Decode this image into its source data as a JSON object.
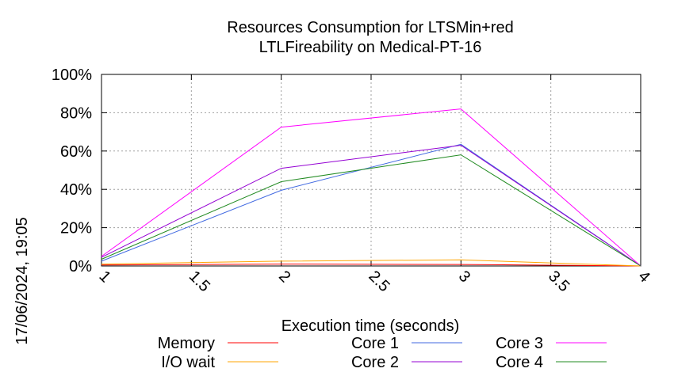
{
  "chart_data": {
    "type": "line",
    "title_line1": "Resources Consumption for LTSMin+red",
    "title_line2": "LTLFireability on Medical-PT-16",
    "xlabel": "Execution time (seconds)",
    "side_label": "17/06/2024, 19:05",
    "xlim": [
      1,
      4
    ],
    "ylim": [
      0,
      100
    ],
    "x_ticks": [
      {
        "value": 1,
        "label": "1"
      },
      {
        "value": 1.5,
        "label": "1.5"
      },
      {
        "value": 2,
        "label": "2"
      },
      {
        "value": 2.5,
        "label": "2.5"
      },
      {
        "value": 3,
        "label": "3"
      },
      {
        "value": 3.5,
        "label": "3.5"
      },
      {
        "value": 4,
        "label": "4"
      }
    ],
    "y_ticks": [
      {
        "value": 0,
        "label": "0%"
      },
      {
        "value": 20,
        "label": "20%"
      },
      {
        "value": 40,
        "label": "40%"
      },
      {
        "value": 60,
        "label": "60%"
      },
      {
        "value": 80,
        "label": "80%"
      },
      {
        "value": 100,
        "label": "100%"
      }
    ],
    "grid": true,
    "legend_position": "bottom",
    "series": [
      {
        "name": "Memory",
        "color": "#ff0000",
        "x": [
          1,
          2,
          3,
          4
        ],
        "y": [
          0.5,
          1.0,
          0.8,
          0
        ]
      },
      {
        "name": "I/O wait",
        "color": "#ffa500",
        "x": [
          1,
          2,
          3,
          4
        ],
        "y": [
          1.0,
          2.5,
          3.2,
          0
        ]
      },
      {
        "name": "Core 1",
        "color": "#4169e1",
        "x": [
          1,
          2,
          3,
          4
        ],
        "y": [
          2.5,
          39.5,
          63.5,
          0
        ]
      },
      {
        "name": "Core 2",
        "color": "#9400d3",
        "x": [
          1,
          2,
          3,
          4
        ],
        "y": [
          4.5,
          51.0,
          63.0,
          0
        ]
      },
      {
        "name": "Core 3",
        "color": "#ff00ff",
        "x": [
          1,
          2,
          3,
          4
        ],
        "y": [
          5.0,
          72.5,
          82.0,
          0
        ]
      },
      {
        "name": "Core 4",
        "color": "#228b22",
        "x": [
          1,
          2,
          3,
          4
        ],
        "y": [
          3.5,
          44.0,
          58.0,
          0
        ]
      }
    ]
  }
}
